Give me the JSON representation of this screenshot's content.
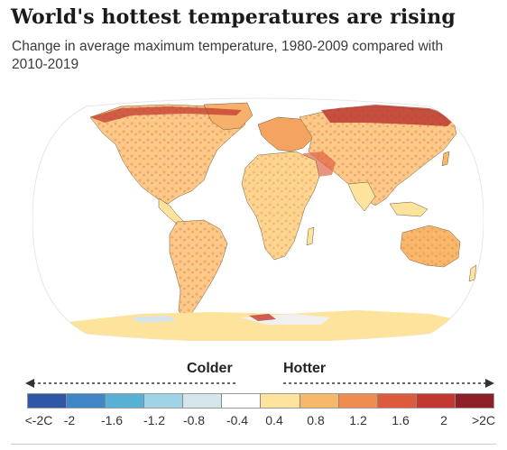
{
  "title": "World's hottest temperatures are rising",
  "subtitle": "Change in average maximum temperature, 1980-2009 compared with 2010-2019",
  "legend": {
    "colder_label": "Colder",
    "hotter_label": "Hotter",
    "bins": [
      {
        "color": "#2f57a6"
      },
      {
        "color": "#3f86c6"
      },
      {
        "color": "#57b1d4"
      },
      {
        "color": "#9fd3e6"
      },
      {
        "color": "#d4e6ec"
      },
      {
        "color": "#ffffff"
      },
      {
        "color": "#fde39c"
      },
      {
        "color": "#f8b86a"
      },
      {
        "color": "#ee8c51"
      },
      {
        "color": "#dd5a3c"
      },
      {
        "color": "#c2392f"
      },
      {
        "color": "#8f1f26"
      }
    ],
    "ticks": [
      "<-2C",
      "-2",
      "-1.6",
      "-1.2",
      "-0.8",
      "-0.4",
      "0.4",
      "0.8",
      "1.2",
      "1.6",
      "2",
      ">2C"
    ]
  },
  "map": {
    "ocean_color": "#ffffff",
    "land_base_color": "#fde5b2",
    "border_color": "#6b5a3a"
  }
}
